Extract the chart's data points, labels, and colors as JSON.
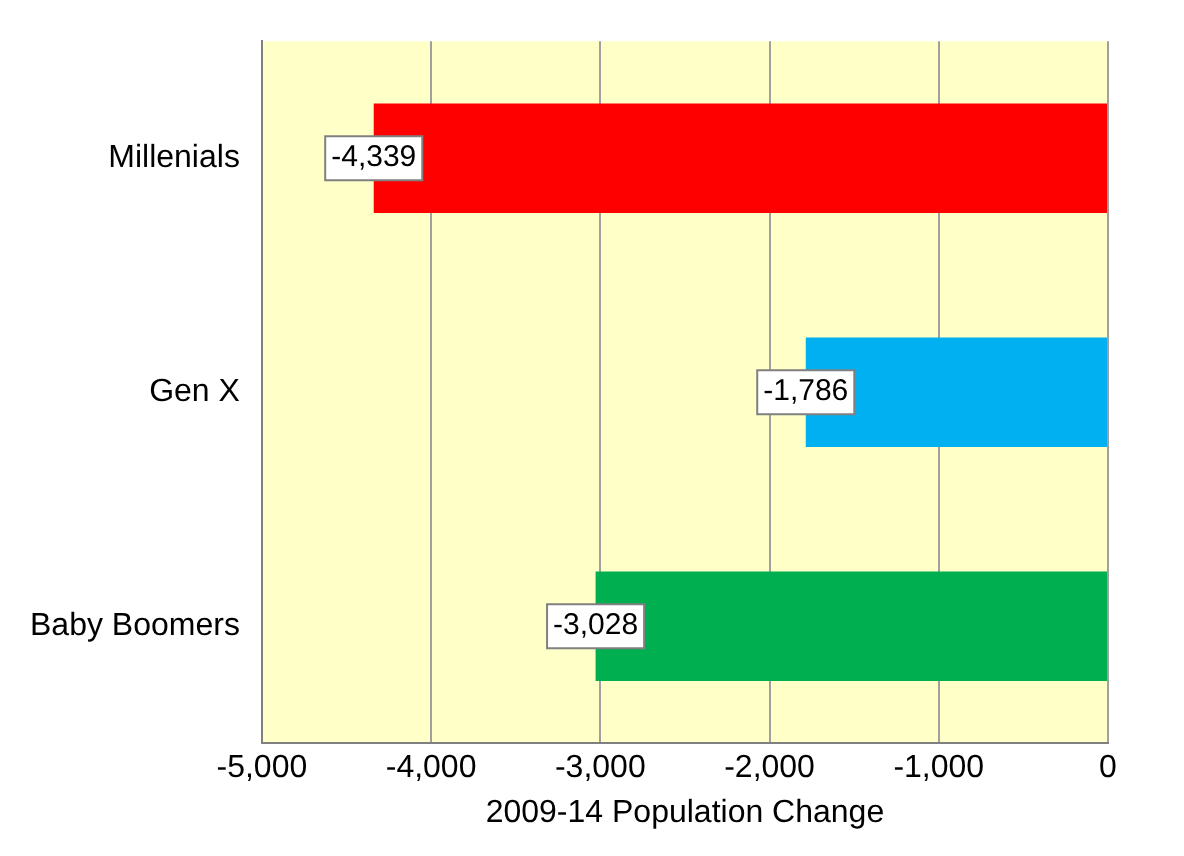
{
  "chart_data": {
    "type": "bar",
    "orientation": "horizontal",
    "xlabel": "2009-14 Population Change",
    "categories": [
      "Millenials",
      "Gen X",
      "Baby Boomers"
    ],
    "values": [
      -4339,
      -1786,
      -3028
    ],
    "colors": [
      "#ff0000",
      "#00b0f0",
      "#00b050"
    ],
    "value_labels": [
      "-4,339",
      "-1,786",
      "-3,028"
    ],
    "xlim": [
      -5000,
      0
    ],
    "xticks": [
      {
        "value": -5000,
        "label": "-5,000"
      },
      {
        "value": -4000,
        "label": "-4,000"
      },
      {
        "value": -3000,
        "label": "-3,000"
      },
      {
        "value": -2000,
        "label": "-2,000"
      },
      {
        "value": -1000,
        "label": "-1,000"
      },
      0
    ],
    "grid": "x",
    "legend": false
  }
}
